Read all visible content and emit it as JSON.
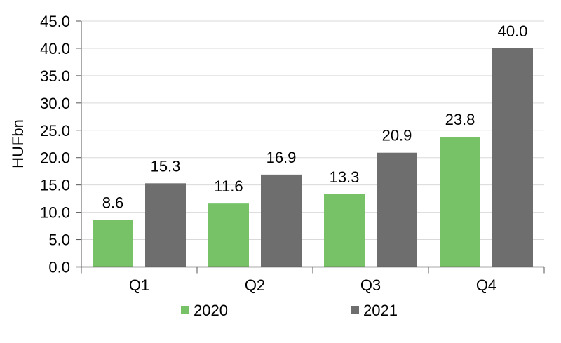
{
  "chart_data": {
    "type": "bar",
    "title": "",
    "xlabel": "",
    "ylabel": "HUFbn",
    "ylim": [
      0,
      45
    ],
    "yticks": [
      "0.0",
      "5.0",
      "10.0",
      "15.0",
      "20.0",
      "25.0",
      "30.0",
      "35.0",
      "40.0",
      "45.0"
    ],
    "grid": true,
    "legend_position": "bottom",
    "categories": [
      "Q1",
      "Q2",
      "Q3",
      "Q4"
    ],
    "series": [
      {
        "name": "2020",
        "color": "#77C267",
        "values": [
          8.6,
          11.6,
          13.3,
          23.8
        ],
        "labels": [
          "8.6",
          "11.6",
          "13.3",
          "23.8"
        ]
      },
      {
        "name": "2021",
        "color": "#6E6E6E",
        "values": [
          15.3,
          16.9,
          20.9,
          40.0
        ],
        "labels": [
          "15.3",
          "16.9",
          "20.9",
          "40.0"
        ]
      }
    ]
  }
}
